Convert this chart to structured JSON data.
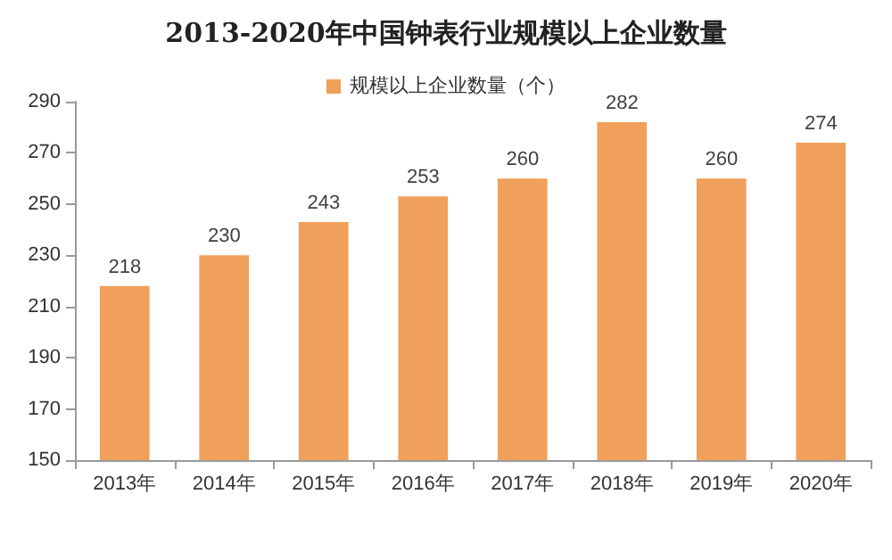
{
  "chart_data": {
    "type": "bar",
    "title": "2013-2020年中国钟表行业规模以上企业数量",
    "categories": [
      "2013年",
      "2014年",
      "2015年",
      "2016年",
      "2017年",
      "2018年",
      "2019年",
      "2020年"
    ],
    "series": [
      {
        "name": "规模以上企业数量（个）",
        "color": "#f0a05a",
        "values": [
          218,
          230,
          243,
          253,
          260,
          282,
          260,
          274
        ]
      }
    ],
    "ylim": [
      150,
      290
    ],
    "yticks": [
      150,
      170,
      190,
      210,
      230,
      250,
      270,
      290
    ],
    "grid": false,
    "legend": "top",
    "data_labels": true
  }
}
